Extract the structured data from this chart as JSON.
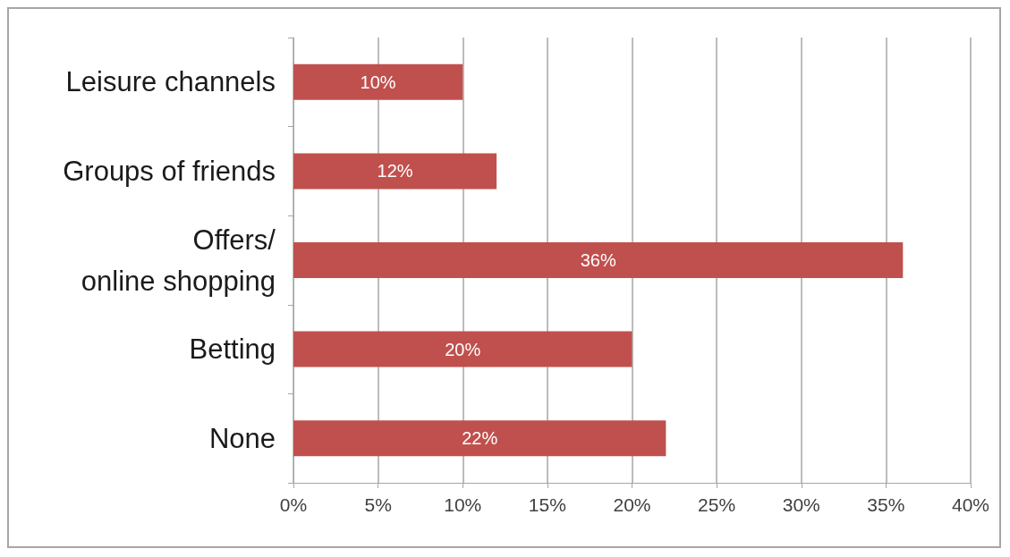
{
  "chart_data": {
    "type": "bar",
    "orientation": "horizontal",
    "categories": [
      "Leisure channels",
      "Groups of friends",
      "Offers/\nonline shopping",
      "Betting",
      "None"
    ],
    "values": [
      10,
      12,
      36,
      20,
      22
    ],
    "value_labels": [
      "10%",
      "12%",
      "36%",
      "20%",
      "22%"
    ],
    "color": "#c0504d",
    "xlim": [
      0,
      40
    ],
    "xticks": [
      {
        "value": 0,
        "label": "0%"
      },
      {
        "value": 5,
        "label": "5%"
      },
      {
        "value": 10,
        "label": "10%"
      },
      {
        "value": 15,
        "label": "15%"
      },
      {
        "value": 20,
        "label": "20%"
      },
      {
        "value": 25,
        "label": "25%"
      },
      {
        "value": 30,
        "label": "30%"
      },
      {
        "value": 35,
        "label": "35%"
      },
      {
        "value": 40,
        "label": "40%"
      }
    ],
    "grid": "x"
  }
}
